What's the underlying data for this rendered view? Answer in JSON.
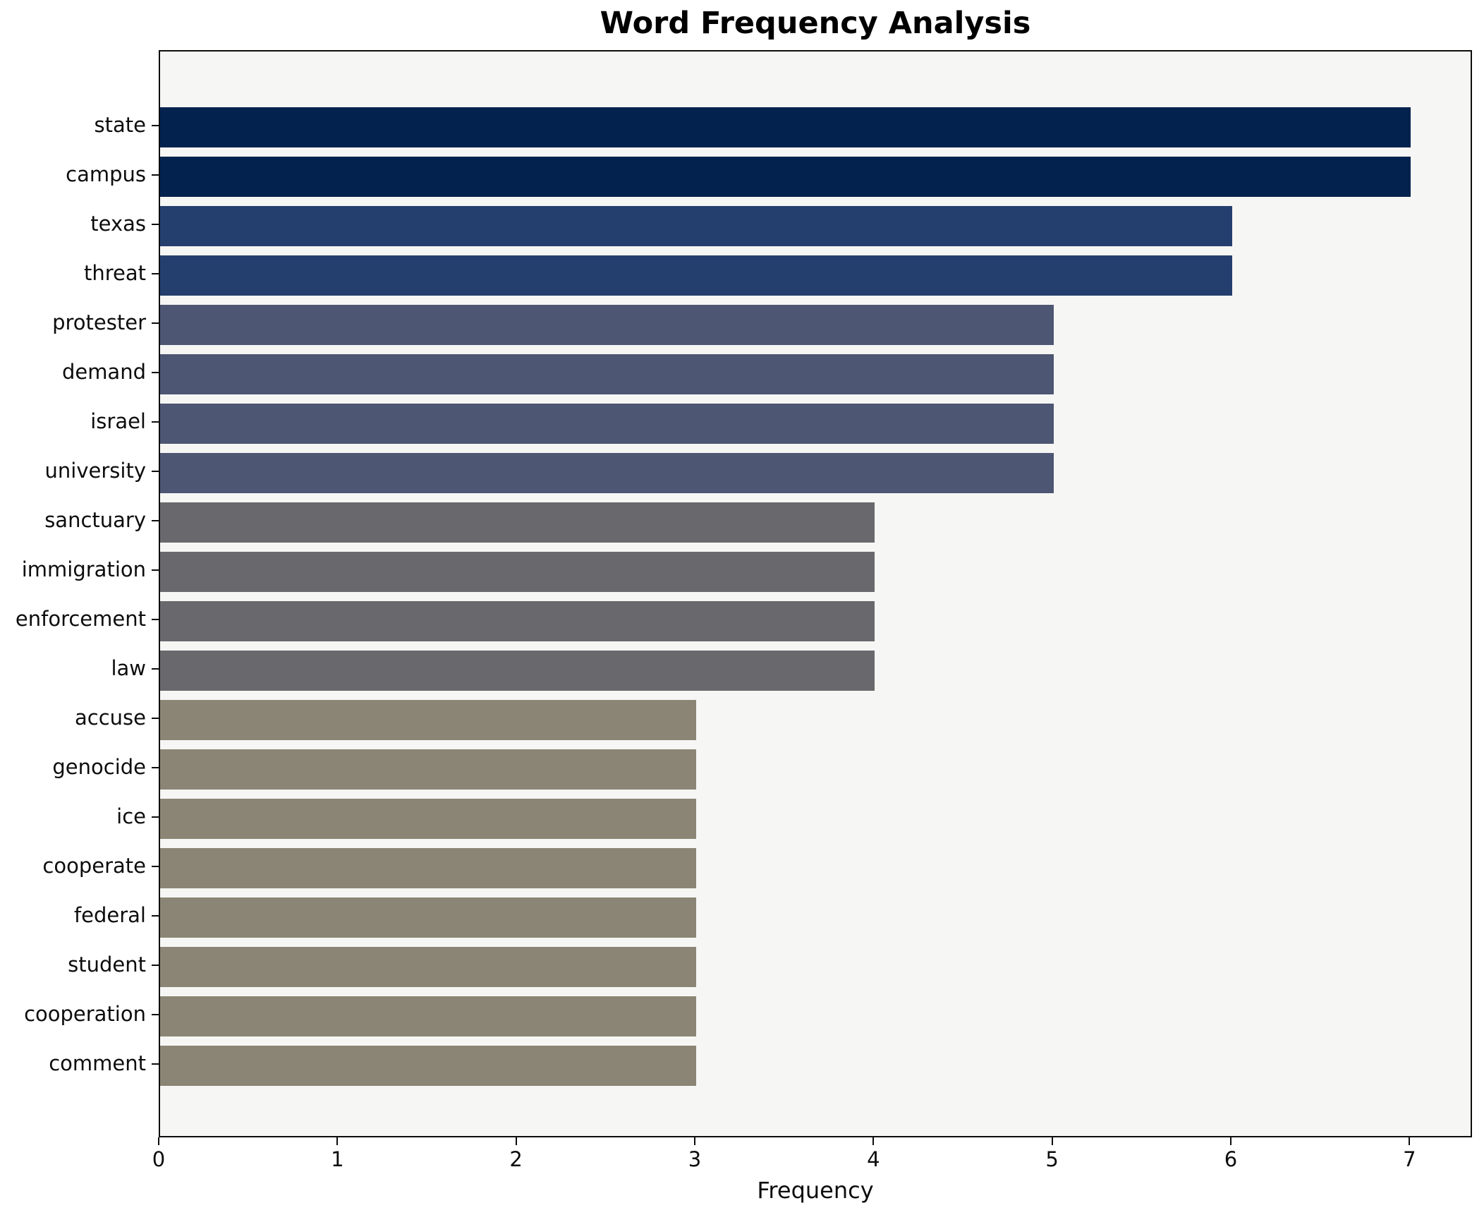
{
  "chart_data": {
    "type": "bar",
    "orientation": "horizontal",
    "title": "Word Frequency Analysis",
    "xlabel": "Frequency",
    "ylabel": "",
    "categories": [
      "state",
      "campus",
      "texas",
      "threat",
      "protester",
      "demand",
      "israel",
      "university",
      "sanctuary",
      "immigration",
      "enforcement",
      "law",
      "accuse",
      "genocide",
      "ice",
      "cooperate",
      "federal",
      "student",
      "cooperation",
      "comment"
    ],
    "values": [
      7,
      7,
      6,
      6,
      5,
      5,
      5,
      5,
      4,
      4,
      4,
      4,
      3,
      3,
      3,
      3,
      3,
      3,
      3,
      3
    ],
    "bar_colors": [
      "#03224e",
      "#03224e",
      "#243f6e",
      "#243f6e",
      "#4d5673",
      "#4d5673",
      "#4d5673",
      "#4d5673",
      "#69696d",
      "#69696d",
      "#69696d",
      "#69696d",
      "#8b8575",
      "#8b8575",
      "#8b8575",
      "#8b8575",
      "#8b8575",
      "#8b8575",
      "#8b8575",
      "#8b8575"
    ],
    "x_ticks": [
      0,
      1,
      2,
      3,
      4,
      5,
      6,
      7
    ],
    "xlim": [
      0,
      7.35
    ],
    "grid": false,
    "legend": null,
    "plot_background": "#f6f6f4",
    "figure_background": "#ffffff",
    "axis_color": "#0d0d0d"
  }
}
